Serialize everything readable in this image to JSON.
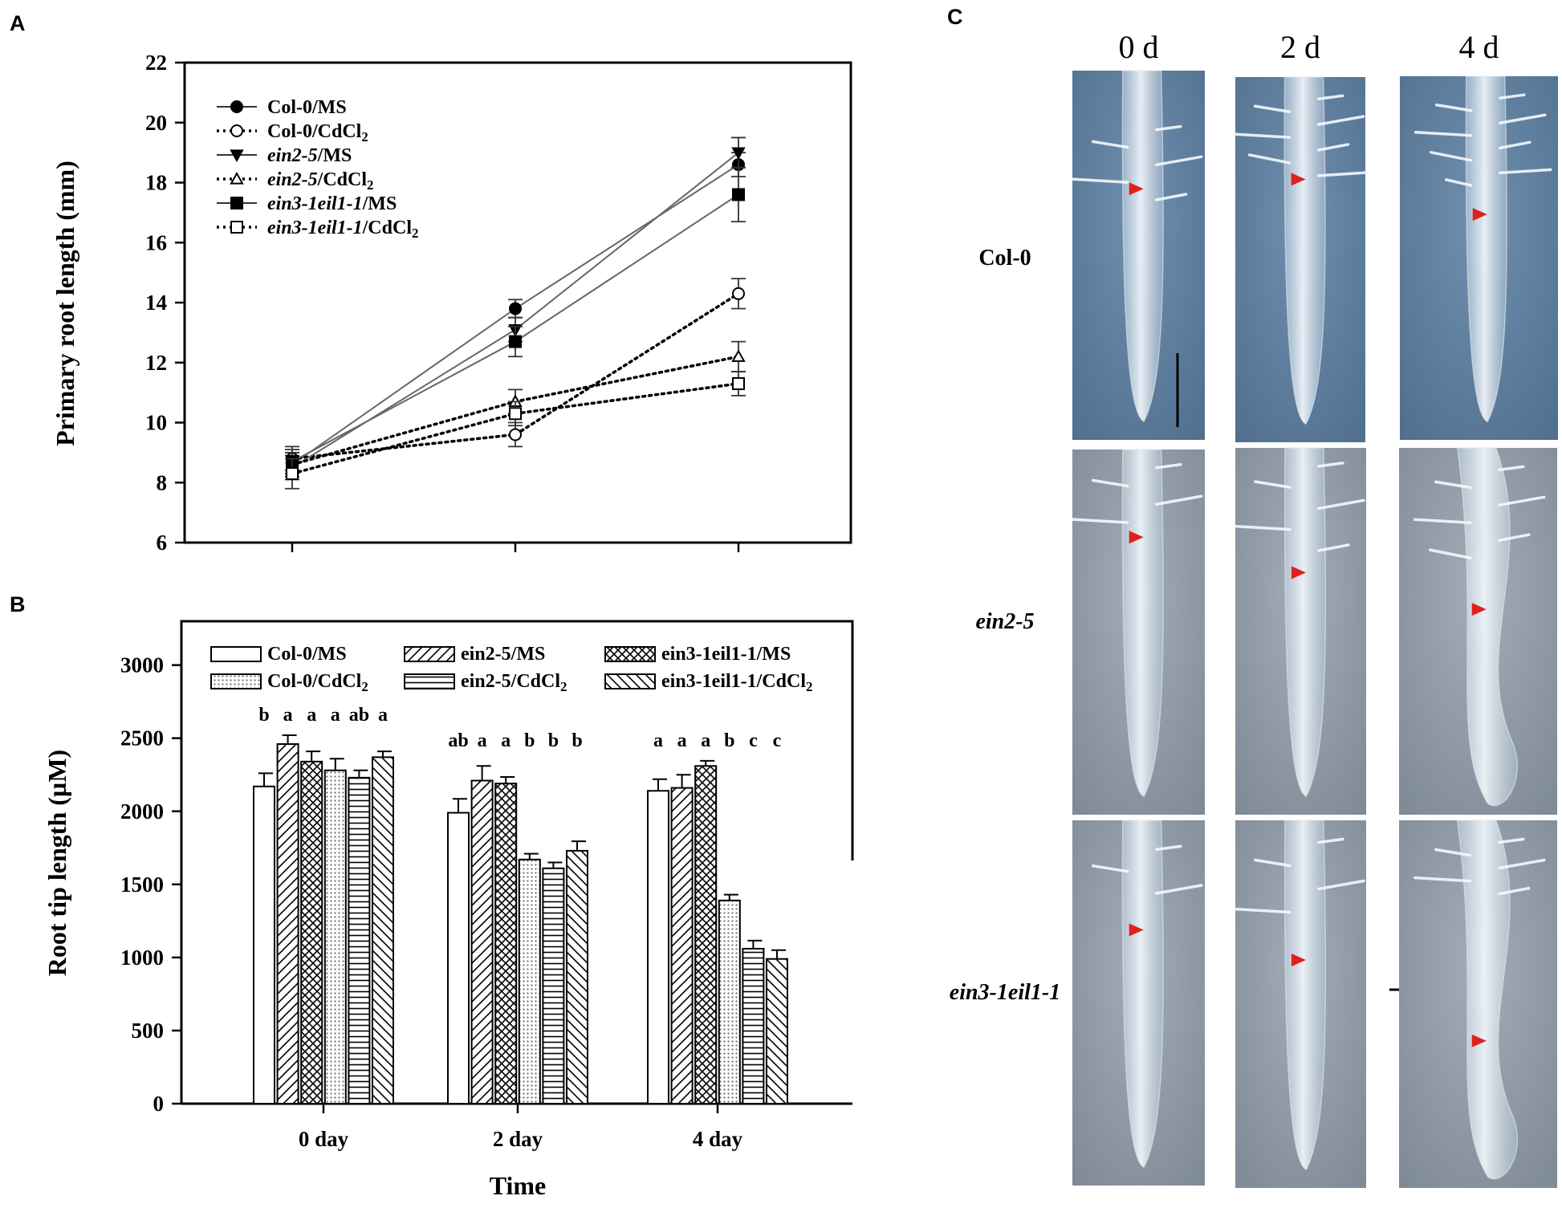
{
  "panels": {
    "a": "A",
    "b": "B",
    "c": "C"
  },
  "chart_data": [
    {
      "type": "line",
      "panel": "A",
      "ylabel": "Primary root length (mm)",
      "xlabel": "",
      "ylim": [
        6,
        22
      ],
      "yticks": [
        "6",
        "8",
        "10",
        "12",
        "14",
        "16",
        "18",
        "20",
        "22"
      ],
      "x": [
        0,
        2,
        4
      ],
      "x_tick_labels": [
        "",
        "",
        ""
      ],
      "grid": false,
      "legend_position": "top-left",
      "series": [
        {
          "name": "Col-0/MS",
          "name_parts": [
            {
              "t": "Col-0/MS",
              "i": false
            }
          ],
          "values": [
            8.6,
            13.8,
            18.6
          ],
          "errors": [
            0.4,
            0.3,
            0.4
          ],
          "line": "solid",
          "marker": "circle-filled"
        },
        {
          "name": "Col-0/CdCl2",
          "name_parts": [
            {
              "t": "Col-0/CdCl",
              "i": false
            },
            {
              "t": "2",
              "sub": true
            }
          ],
          "values": [
            8.8,
            9.6,
            14.3
          ],
          "errors": [
            0.4,
            0.4,
            0.5
          ],
          "line": "dotted",
          "marker": "circle-open"
        },
        {
          "name": "ein2-5/MS",
          "name_parts": [
            {
              "t": "ein2-5",
              "i": true
            },
            {
              "t": "/MS",
              "i": false
            }
          ],
          "values": [
            8.5,
            13.1,
            19.0
          ],
          "errors": [
            0.4,
            0.4,
            0.5
          ],
          "line": "solid",
          "marker": "triangle-down-filled"
        },
        {
          "name": "ein2-5/CdCl2",
          "name_parts": [
            {
              "t": "ein2-5",
              "i": true
            },
            {
              "t": "/CdCl",
              "i": false
            },
            {
              "t": "2",
              "sub": true
            }
          ],
          "values": [
            8.6,
            10.7,
            12.2
          ],
          "errors": [
            0.4,
            0.4,
            0.5
          ],
          "line": "dotted",
          "marker": "triangle-up-open"
        },
        {
          "name": "ein3-1eil1-1/MS",
          "name_parts": [
            {
              "t": "ein3-1eil1-1",
              "i": true
            },
            {
              "t": "/MS",
              "i": false
            }
          ],
          "values": [
            8.7,
            12.7,
            17.6
          ],
          "errors": [
            0.4,
            0.5,
            0.9
          ],
          "line": "solid",
          "marker": "square-filled"
        },
        {
          "name": "ein3-1eil1-1/CdCl2",
          "name_parts": [
            {
              "t": "ein3-1eil1-1",
              "i": true
            },
            {
              "t": "/CdCl",
              "i": false
            },
            {
              "t": "2",
              "sub": true
            }
          ],
          "values": [
            8.3,
            10.3,
            11.3
          ],
          "errors": [
            0.5,
            0.4,
            0.4
          ],
          "line": "dotted",
          "marker": "square-open"
        }
      ]
    },
    {
      "type": "bar",
      "panel": "B",
      "ylabel": "Root tip length (µM)",
      "xlabel": "Time",
      "categories": [
        "0 day",
        "2 day",
        "4 day"
      ],
      "ylim": [
        0,
        3300
      ],
      "yticks": [
        "0",
        "500",
        "1000",
        "1500",
        "2000",
        "2500",
        "3000"
      ],
      "grid": false,
      "legend_position": "top",
      "series": [
        {
          "name": "Col-0/MS",
          "name_parts": [
            {
              "t": "Col-0/MS",
              "i": false
            }
          ],
          "pattern": "plain",
          "values": [
            2170,
            1990,
            2140
          ],
          "errors": [
            90,
            95,
            80
          ],
          "letters": [
            "b",
            "ab",
            "a"
          ]
        },
        {
          "name": "ein2-5/MS",
          "name_parts": [
            {
              "t": "ein2-5/MS",
              "i": false
            }
          ],
          "pattern": "diag",
          "values": [
            2460,
            2210,
            2160
          ],
          "errors": [
            60,
            100,
            90
          ],
          "letters": [
            "a",
            "a",
            "a"
          ]
        },
        {
          "name": "ein3-1eil1-1/MS",
          "name_parts": [
            {
              "t": "ein3-1eil1-1/MS",
              "i": false
            }
          ],
          "pattern": "cross",
          "values": [
            2340,
            2190,
            2310
          ],
          "errors": [
            70,
            45,
            35
          ],
          "letters": [
            "a",
            "a",
            "a"
          ]
        },
        {
          "name": "Col-0/CdCl2",
          "name_parts": [
            {
              "t": "Col-0/CdCl",
              "i": false
            },
            {
              "t": "2",
              "sub": true
            }
          ],
          "pattern": "dots",
          "values": [
            2280,
            1670,
            1390
          ],
          "errors": [
            80,
            40,
            40
          ],
          "letters": [
            "a",
            "b",
            "b"
          ]
        },
        {
          "name": "ein2-5/CdCl2",
          "name_parts": [
            {
              "t": "ein2-5/CdCl",
              "i": false
            },
            {
              "t": "2",
              "sub": true
            }
          ],
          "pattern": "hlines",
          "values": [
            2230,
            1610,
            1060
          ],
          "errors": [
            50,
            40,
            55
          ],
          "letters": [
            "ab",
            "b",
            "c"
          ]
        },
        {
          "name": "ein3-1eil1-1/CdCl2",
          "name_parts": [
            {
              "t": "ein3-1eil1-1/CdCl",
              "i": false
            },
            {
              "t": "2",
              "sub": true
            }
          ],
          "pattern": "backdiag",
          "values": [
            2370,
            1730,
            990
          ],
          "errors": [
            40,
            65,
            60
          ],
          "letters": [
            "a",
            "b",
            "c"
          ]
        }
      ]
    }
  ],
  "micrographs": {
    "columns": [
      "0 d",
      "2 d",
      "4 d"
    ],
    "rows": [
      {
        "label": "Col-0",
        "italic": false
      },
      {
        "label": "ein2-5",
        "italic": true
      },
      {
        "label": "ein3-1eil1-1",
        "italic": true
      }
    ]
  },
  "colors": {
    "ink": "#000000",
    "col0_panel_bg": "#5f7d9c",
    "mutant_panel_bg": "#8e99a6",
    "arrow": "#e0201c"
  }
}
